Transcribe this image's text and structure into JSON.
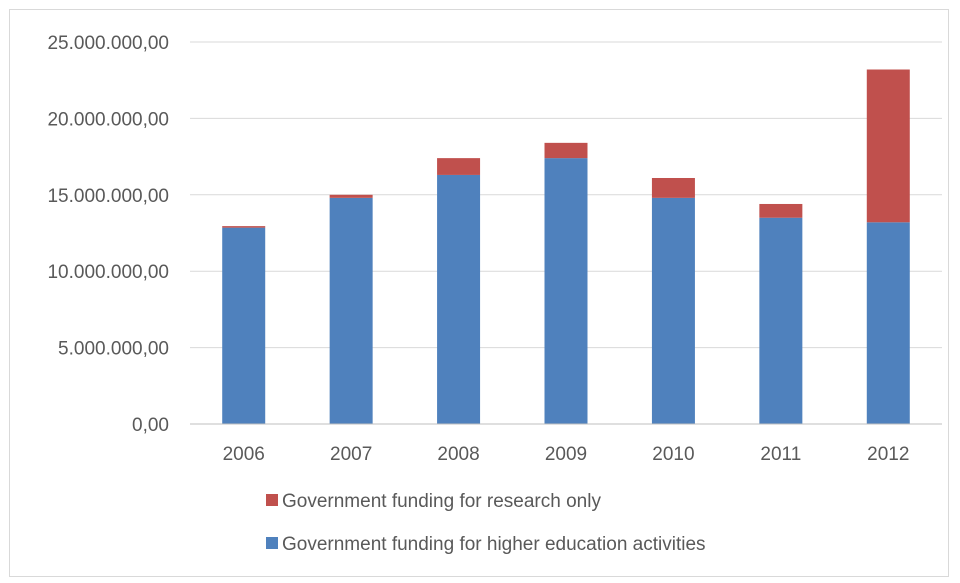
{
  "chart_data": {
    "type": "bar",
    "stacked": true,
    "categories": [
      "2006",
      "2007",
      "2008",
      "2009",
      "2010",
      "2011",
      "2012"
    ],
    "series": [
      {
        "name": "Government funding for research only",
        "color": "#c0504d",
        "values": [
          100000,
          200000,
          1100000,
          1000000,
          1300000,
          900000,
          10000000
        ]
      },
      {
        "name": "Government  funding for higher education activities",
        "color": "#4f81bd",
        "values": [
          12850000,
          14800000,
          16300000,
          17400000,
          14800000,
          13500000,
          13200000
        ]
      }
    ],
    "ylim": [
      0,
      25000000
    ],
    "y_ticks": [
      0,
      5000000,
      10000000,
      15000000,
      20000000,
      25000000
    ],
    "y_tick_labels": [
      "0,00",
      "5.000.000,00",
      "10.000.000,00",
      "15.000.000,00",
      "20.000.000,00",
      "25.000.000,00"
    ],
    "grid": true,
    "legend_position": "bottom",
    "title": "",
    "xlabel": "",
    "ylabel": "",
    "gridline_color": "#d9d9d9",
    "axis_color": "#bfbfbf"
  }
}
